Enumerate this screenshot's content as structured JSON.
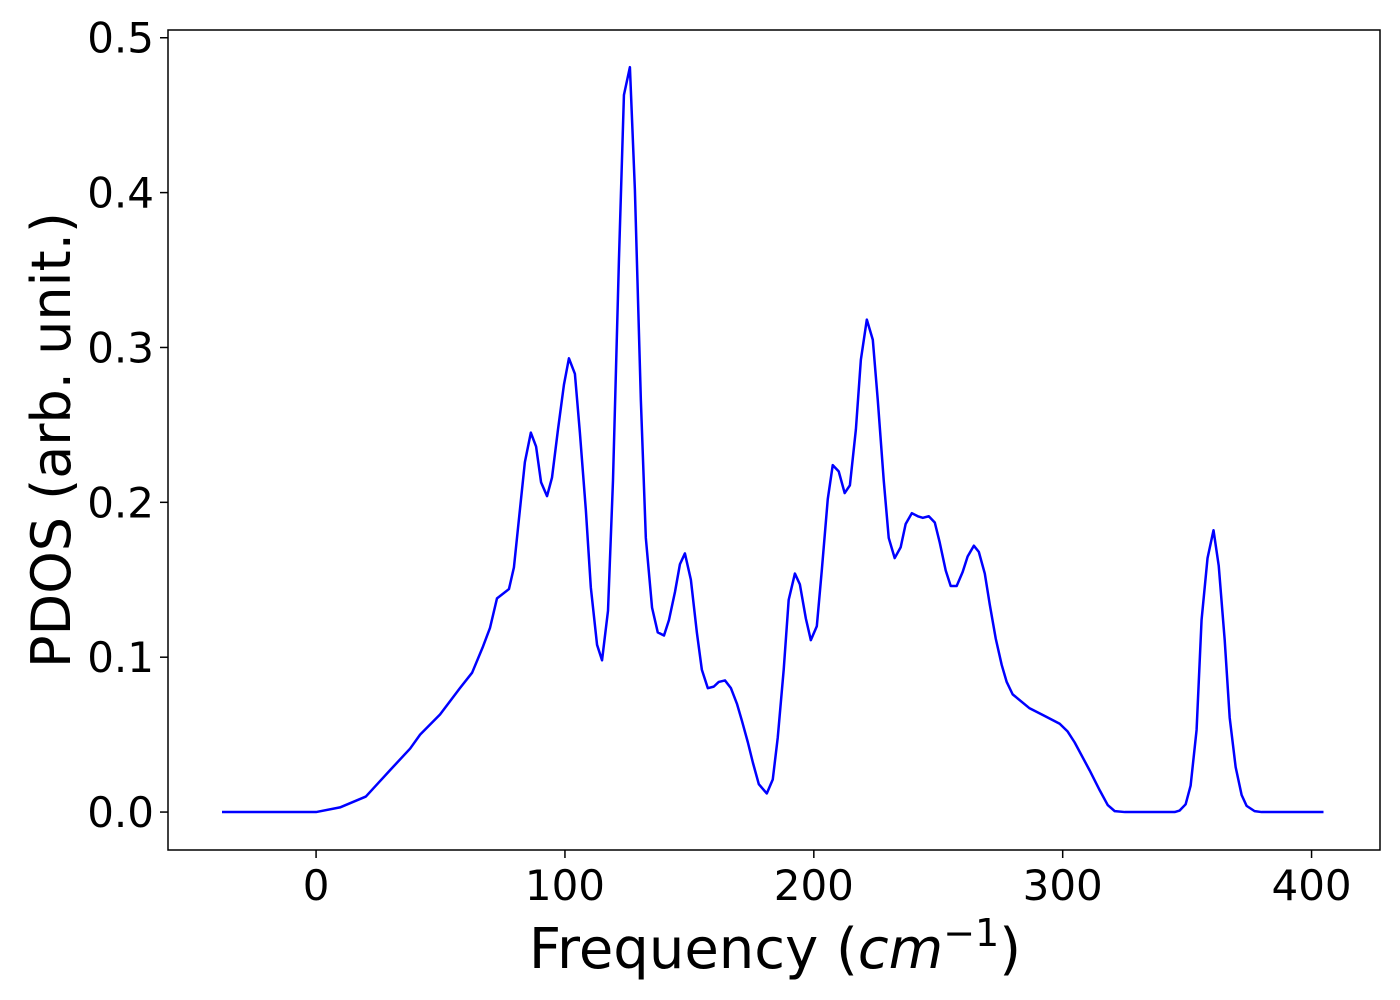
{
  "chart_data": {
    "type": "line",
    "xlabel_parts": [
      "Frequency (",
      "cm",
      "−1",
      ")"
    ],
    "ylabel": "PDOS (arb. unit.)",
    "xlim": [
      -59.5,
      427.5
    ],
    "ylim": [
      -0.0245,
      0.505
    ],
    "xticks": [
      0,
      100,
      200,
      300,
      400
    ],
    "yticks": [
      {
        "value": 0,
        "label": "0.0"
      },
      {
        "value": 0.1,
        "label": "0.1"
      },
      {
        "value": 0.2,
        "label": "0.2"
      },
      {
        "value": 0.3,
        "label": "0.3"
      },
      {
        "value": 0.4,
        "label": "0.4"
      },
      {
        "value": 0.5,
        "label": "0.5"
      }
    ],
    "series": [
      {
        "color": "#0000ff",
        "x": [
          -37.8,
          0,
          9.6,
          20,
          29.7,
          37.8,
          41.8,
          49.8,
          57.8,
          62.7,
          67.1,
          69.9,
          72.7,
          77.5,
          79.5,
          81.5,
          83.9,
          86.3,
          88.4,
          90.4,
          92.8,
          94.8,
          97.2,
          99.6,
          101.6,
          104,
          106,
          108.4,
          110.4,
          112.9,
          114.9,
          117.3,
          119.3,
          121.7,
          123.7,
          126.1,
          128.1,
          130.5,
          132.5,
          135,
          137.3,
          139.8,
          141.8,
          144.2,
          146.2,
          148.2,
          150.6,
          153,
          155,
          157.4,
          159.8,
          161.8,
          164.3,
          166.7,
          169.1,
          171.1,
          173.5,
          175.5,
          177.9,
          181.1,
          183.5,
          185.5,
          187.9,
          189.9,
          192.4,
          194.4,
          196.8,
          198.8,
          201.2,
          203.2,
          205.6,
          207.6,
          210,
          212.4,
          214.5,
          216.9,
          218.9,
          221.3,
          223.7,
          225.7,
          228.1,
          230.1,
          232.5,
          234.9,
          236.9,
          239.4,
          241.8,
          243.8,
          246.2,
          248.6,
          250.6,
          253,
          255,
          257.4,
          259.8,
          261.8,
          264.3,
          266.3,
          268.7,
          270.7,
          273.1,
          275.5,
          277.5,
          279.9,
          286.7,
          292.8,
          298.8,
          302,
          304.8,
          310.8,
          314.9,
          318.1,
          320.9,
          325,
          345,
          347,
          349.4,
          351.4,
          353.8,
          355.8,
          358.2,
          360.6,
          362.7,
          365.1,
          367.1,
          369.5,
          371.9,
          373.9,
          377.1,
          379.9,
          404.8
        ],
        "values": [
          0,
          0,
          0.003,
          0.01,
          0.027,
          0.041,
          0.05,
          0.063,
          0.08,
          0.09,
          0.107,
          0.119,
          0.138,
          0.144,
          0.158,
          0.189,
          0.226,
          0.245,
          0.236,
          0.213,
          0.204,
          0.216,
          0.247,
          0.276,
          0.293,
          0.283,
          0.245,
          0.195,
          0.145,
          0.108,
          0.098,
          0.13,
          0.214,
          0.357,
          0.463,
          0.481,
          0.402,
          0.266,
          0.177,
          0.132,
          0.116,
          0.114,
          0.124,
          0.142,
          0.16,
          0.167,
          0.15,
          0.116,
          0.092,
          0.08,
          0.081,
          0.084,
          0.085,
          0.08,
          0.07,
          0.059,
          0.045,
          0.032,
          0.018,
          0.012,
          0.021,
          0.048,
          0.092,
          0.137,
          0.154,
          0.147,
          0.125,
          0.111,
          0.12,
          0.156,
          0.202,
          0.224,
          0.22,
          0.206,
          0.211,
          0.247,
          0.292,
          0.318,
          0.305,
          0.266,
          0.214,
          0.177,
          0.164,
          0.171,
          0.186,
          0.193,
          0.191,
          0.19,
          0.191,
          0.187,
          0.174,
          0.156,
          0.146,
          0.146,
          0.155,
          0.165,
          0.172,
          0.168,
          0.154,
          0.134,
          0.112,
          0.095,
          0.084,
          0.076,
          0.067,
          0.062,
          0.057,
          0.052,
          0.045,
          0.027,
          0.014,
          0.0045,
          0.0006,
          0,
          0,
          0.001,
          0.005,
          0.017,
          0.053,
          0.124,
          0.164,
          0.182,
          0.159,
          0.111,
          0.061,
          0.029,
          0.011,
          0.004,
          0.0006,
          0,
          0
        ]
      }
    ]
  }
}
